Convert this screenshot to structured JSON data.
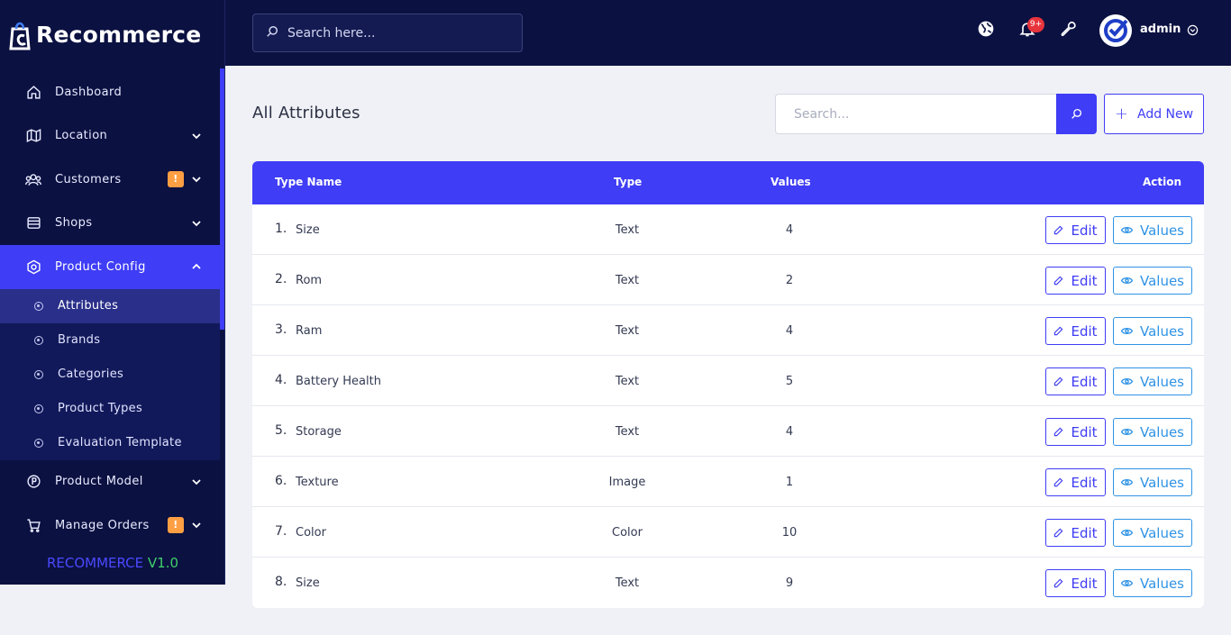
{
  "brand": {
    "name": "Recommerce",
    "version_name": "RECOMMERCE",
    "version_number": "V1.0"
  },
  "header": {
    "search_placeholder": "Search here...",
    "notification_count": "9+",
    "user_name": "admin"
  },
  "sidebar": {
    "items": [
      {
        "label": "Dashboard",
        "icon": "home-icon"
      },
      {
        "label": "Location",
        "icon": "map-icon"
      },
      {
        "label": "Customers",
        "icon": "customers-icon",
        "alert": "!"
      },
      {
        "label": "Shops",
        "icon": "shop-icon"
      },
      {
        "label": "Product Config",
        "icon": "product-config-icon"
      },
      {
        "label": "Product Model",
        "icon": "product-model-icon"
      },
      {
        "label": "Manage Orders",
        "icon": "cart-icon",
        "alert": "!"
      }
    ],
    "sub_items": [
      {
        "label": "Attributes"
      },
      {
        "label": "Brands"
      },
      {
        "label": "Categories"
      },
      {
        "label": "Product Types"
      },
      {
        "label": "Evaluation Template"
      }
    ]
  },
  "main": {
    "title": "All Attributes",
    "search_placeholder": "Search...",
    "add_new_label": "Add New",
    "table": {
      "headers": {
        "name": "Type Name",
        "type": "Type",
        "values": "Values",
        "action": "Action"
      },
      "edit_label": "Edit",
      "values_label": "Values",
      "rows": [
        {
          "num": "1.",
          "name": "Size",
          "type": "Text",
          "values": "4"
        },
        {
          "num": "2.",
          "name": "Rom",
          "type": "Text",
          "values": "2"
        },
        {
          "num": "3.",
          "name": "Ram",
          "type": "Text",
          "values": "4"
        },
        {
          "num": "4.",
          "name": "Battery Health",
          "type": "Text",
          "values": "5"
        },
        {
          "num": "5.",
          "name": "Storage",
          "type": "Text",
          "values": "4"
        },
        {
          "num": "6.",
          "name": "Texture",
          "type": "Image",
          "values": "1"
        },
        {
          "num": "7.",
          "name": "Color",
          "type": "Color",
          "values": "10"
        },
        {
          "num": "8.",
          "name": "Size",
          "type": "Text",
          "values": "9"
        }
      ]
    }
  },
  "colors": {
    "primary": "#3f3df5",
    "navy": "#0b1141",
    "info": "#2f93e6",
    "warning": "#ff9f43"
  }
}
